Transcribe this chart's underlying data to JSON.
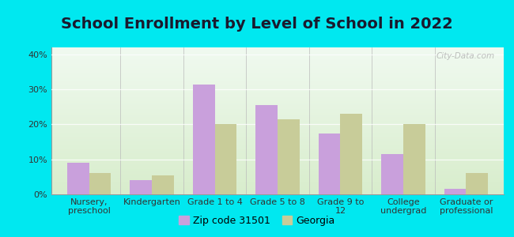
{
  "title": "School Enrollment by Level of School in 2022",
  "categories": [
    "Nursery,\npreschool",
    "Kindergarten",
    "Grade 1 to 4",
    "Grade 5 to 8",
    "Grade 9 to\n12",
    "College\nundergrad",
    "Graduate or\nprofessional"
  ],
  "zip_values": [
    9.0,
    4.0,
    31.5,
    25.5,
    17.5,
    11.5,
    1.5
  ],
  "georgia_values": [
    6.0,
    5.5,
    20.0,
    21.5,
    23.0,
    20.0,
    6.0
  ],
  "zip_color": "#c9a0dc",
  "georgia_color": "#c8cc99",
  "background_outer": "#00e8f0",
  "background_inner_top": "#f0faf0",
  "background_inner_bottom": "#d8edcc",
  "ylim": [
    0,
    42
  ],
  "yticks": [
    0,
    10,
    20,
    30,
    40
  ],
  "ytick_labels": [
    "0%",
    "10%",
    "20%",
    "30%",
    "40%"
  ],
  "watermark": "City-Data.com",
  "legend_zip_label": "Zip code 31501",
  "legend_georgia_label": "Georgia",
  "title_fontsize": 14,
  "tick_fontsize": 8,
  "legend_fontsize": 9
}
